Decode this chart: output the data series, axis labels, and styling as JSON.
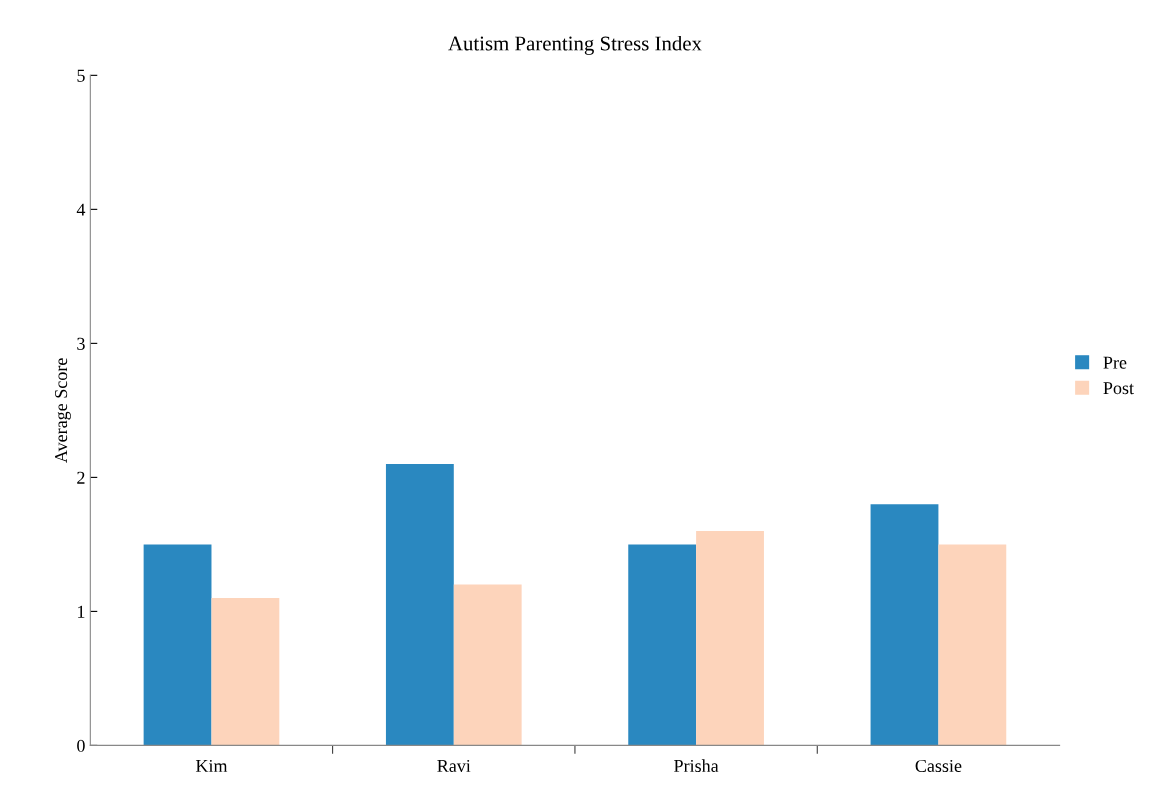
{
  "chart_data": {
    "type": "bar",
    "title": "Autism Parenting Stress Index",
    "ylabel": "Average Score",
    "categories": [
      "Kim",
      "Ravi",
      "Prisha",
      "Cassie"
    ],
    "series": [
      {
        "name": "Pre",
        "color": "#2a88c0",
        "values": [
          1.5,
          2.1,
          1.5,
          1.8
        ]
      },
      {
        "name": "Post",
        "color": "#fdd4bb",
        "values": [
          1.1,
          1.2,
          1.6,
          1.5
        ]
      }
    ],
    "ylim": [
      0,
      5
    ],
    "yticks": [
      0,
      1,
      2,
      3,
      4,
      5
    ],
    "grid": false,
    "legend": "right"
  }
}
